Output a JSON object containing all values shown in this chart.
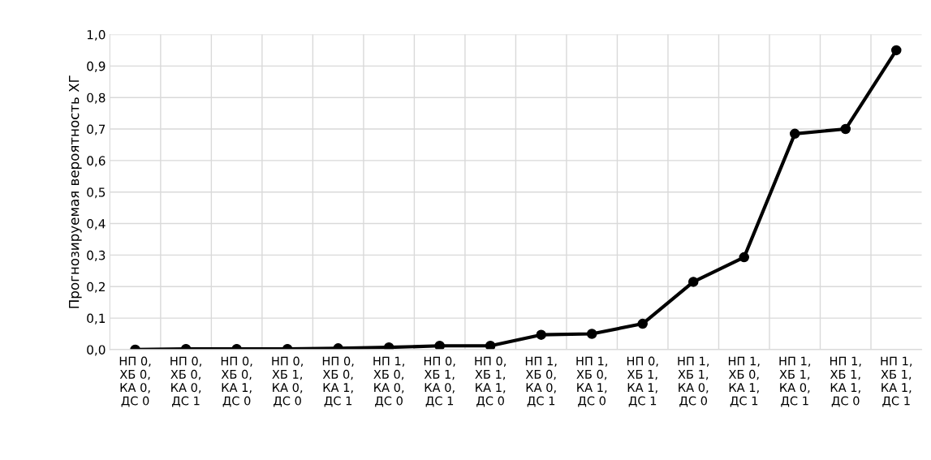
{
  "chart_data": {
    "type": "line",
    "ylabel": "Прогнозируемая вероятность ХГ",
    "categories": [
      "НП 0,\nХБ 0,\nКА 0,\nДС 0",
      "НП 0,\nХБ 0,\nКА 0,\nДС 1",
      "НП 0,\nХБ 0,\nКА 1,\nДС 0",
      "НП 0,\nХБ 1,\nКА 0,\nДС 0",
      "НП 0,\nХБ 0,\nКА 1,\nДС 1",
      "НП 1,\nХБ 0,\nКА 0,\nДС 0",
      "НП 0,\nХБ 1,\nКА 0,\nДС 1",
      "НП 0,\nХБ 1,\nКА 1,\nДС 0",
      "НП 1,\nХБ 0,\nКА 0,\nДС 1",
      "НП 1,\nХБ 0,\nКА 1,\nДС 0",
      "НП 0,\nХБ 1,\nКА 1,\nДС 1",
      "НП 1,\nХБ 1,\nКА 0,\nДС 0",
      "НП 1,\nХБ 0,\nКА 1,\nДС 1",
      "НП 1,\nХБ 1,\nКА 0,\nДС 1",
      "НП 1,\nХБ 1,\nКА 1,\nДС 0",
      "НП 1,\nХБ 1,\nКА 1,\nДС 1"
    ],
    "values": [
      0.0,
      0.002,
      0.002,
      0.002,
      0.004,
      0.007,
      0.012,
      0.012,
      0.047,
      0.05,
      0.082,
      0.215,
      0.293,
      0.685,
      0.7,
      0.95
    ],
    "color": "#000000",
    "marker": "circle",
    "line_style": "solid",
    "ylim": [
      0,
      1.0
    ],
    "yticks": [
      {
        "value": 0,
        "label": "0,0"
      },
      {
        "value": 0.1,
        "label": "0,1"
      },
      {
        "value": 0.2,
        "label": "0,2"
      },
      {
        "value": 0.3,
        "label": "0,3"
      },
      {
        "value": 0.4,
        "label": "0,4"
      },
      {
        "value": 0.5,
        "label": "0,5"
      },
      {
        "value": 0.6,
        "label": "0,6"
      },
      {
        "value": 0.7,
        "label": "0,7"
      },
      {
        "value": 0.8,
        "label": "0,8"
      },
      {
        "value": 0.9,
        "label": "0,9"
      },
      {
        "value": 1.0,
        "label": "1,0"
      }
    ],
    "grid": true
  }
}
